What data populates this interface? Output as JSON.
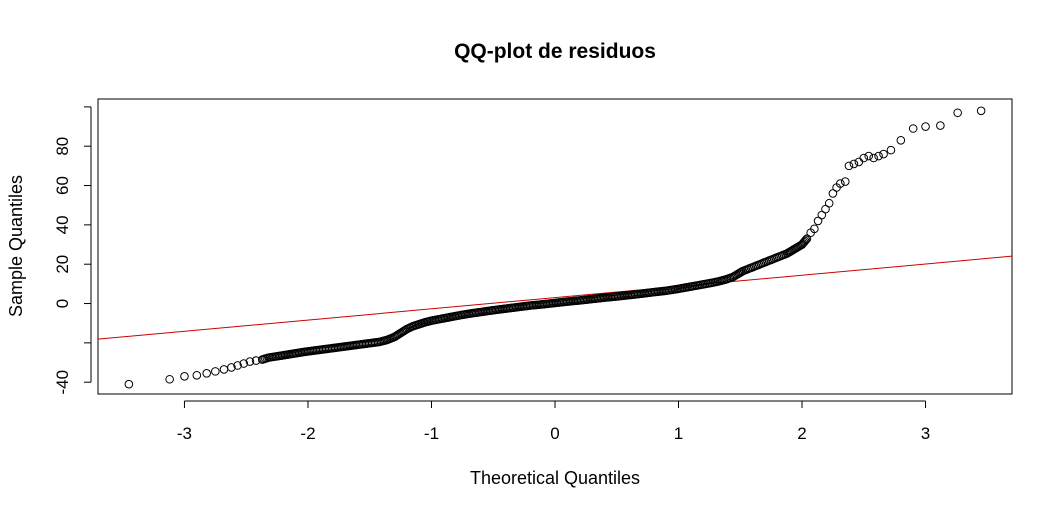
{
  "chart_data": {
    "type": "scatter",
    "title": "QQ-plot de residuos",
    "xlabel": "Theoretical Quantiles",
    "ylabel": "Sample Quantiles",
    "xlim": [
      -3.7,
      3.7
    ],
    "ylim": [
      -46,
      104
    ],
    "xticks": [
      -3,
      -2,
      -1,
      0,
      1,
      2,
      3
    ],
    "yticks": [
      -40,
      -20,
      0,
      20,
      40,
      60,
      80,
      100
    ],
    "ytick_labels": [
      "-40",
      "",
      "0",
      "20",
      "40",
      "60",
      "80",
      ""
    ],
    "grid": false,
    "legend": "none",
    "colors": {
      "points": "#000000",
      "reference_line": "#cc0000"
    },
    "reference_line": {
      "intercept": 3.0,
      "slope": 5.7
    },
    "series": [
      {
        "values_xy": [
          [
            -3.45,
            -41
          ],
          [
            -3.12,
            -38.5
          ],
          [
            -3.0,
            -37
          ],
          [
            -2.9,
            -36.5
          ],
          [
            -2.82,
            -35.5
          ],
          [
            -2.75,
            -34.5
          ],
          [
            -2.68,
            -33.5
          ],
          [
            -2.62,
            -32.5
          ],
          [
            -2.57,
            -31.5
          ],
          [
            -2.52,
            -30.5
          ],
          [
            -2.47,
            -29.5
          ],
          [
            -2.42,
            -29
          ],
          [
            -2.37,
            -28.5
          ],
          [
            -2.32,
            -27.5
          ],
          [
            -2.27,
            -27
          ],
          [
            -2.22,
            -26.5
          ],
          [
            -2.17,
            -26
          ],
          [
            -2.12,
            -25.5
          ],
          [
            -2.07,
            -25
          ],
          [
            -2.02,
            -24.5
          ],
          [
            -1.96,
            -24
          ],
          [
            -1.9,
            -23.5
          ],
          [
            -1.84,
            -23
          ],
          [
            -1.78,
            -22.5
          ],
          [
            -1.72,
            -22
          ],
          [
            -1.66,
            -21.5
          ],
          [
            -1.6,
            -21
          ],
          [
            -1.54,
            -20.5
          ],
          [
            -1.48,
            -20
          ],
          [
            -1.42,
            -19.5
          ],
          [
            -1.36,
            -18.5
          ],
          [
            -1.3,
            -17
          ],
          [
            -1.25,
            -15
          ],
          [
            -1.2,
            -13
          ],
          [
            -1.15,
            -11.5
          ],
          [
            -1.1,
            -10.5
          ],
          [
            -1.05,
            -9.5
          ],
          [
            -1.0,
            -8.7
          ],
          [
            -0.9,
            -7.5
          ],
          [
            -0.8,
            -6.3
          ],
          [
            -0.7,
            -5.2
          ],
          [
            -0.6,
            -4.3
          ],
          [
            -0.5,
            -3.4
          ],
          [
            -0.4,
            -2.6
          ],
          [
            -0.3,
            -1.8
          ],
          [
            -0.2,
            -1.0
          ],
          [
            -0.1,
            -0.4
          ],
          [
            0.0,
            0.3
          ],
          [
            0.1,
            1.0
          ],
          [
            0.2,
            1.6
          ],
          [
            0.3,
            2.3
          ],
          [
            0.4,
            3.0
          ],
          [
            0.5,
            3.6
          ],
          [
            0.6,
            4.3
          ],
          [
            0.7,
            5.0
          ],
          [
            0.8,
            5.8
          ],
          [
            0.9,
            6.5
          ],
          [
            1.0,
            7.5
          ],
          [
            1.08,
            8.4
          ],
          [
            1.16,
            9.3
          ],
          [
            1.24,
            10.2
          ],
          [
            1.32,
            11.2
          ],
          [
            1.38,
            12.2
          ],
          [
            1.44,
            13.5
          ],
          [
            1.48,
            15
          ],
          [
            1.52,
            16.5
          ],
          [
            1.56,
            17.5
          ],
          [
            1.6,
            18.5
          ],
          [
            1.64,
            19.5
          ],
          [
            1.68,
            20.5
          ],
          [
            1.72,
            21.5
          ],
          [
            1.76,
            22.5
          ],
          [
            1.8,
            23.5
          ],
          [
            1.84,
            24.5
          ],
          [
            1.88,
            25.5
          ],
          [
            1.92,
            27
          ],
          [
            1.96,
            28.5
          ],
          [
            2.0,
            30
          ],
          [
            2.04,
            33
          ],
          [
            2.07,
            36
          ],
          [
            2.1,
            38
          ],
          [
            2.13,
            42
          ],
          [
            2.16,
            45
          ],
          [
            2.19,
            48
          ],
          [
            2.22,
            51
          ],
          [
            2.25,
            56
          ],
          [
            2.28,
            59
          ],
          [
            2.31,
            61
          ],
          [
            2.35,
            62
          ],
          [
            2.38,
            70
          ],
          [
            2.42,
            71
          ],
          [
            2.46,
            72
          ],
          [
            2.5,
            74
          ],
          [
            2.54,
            75
          ],
          [
            2.58,
            74
          ],
          [
            2.62,
            75
          ],
          [
            2.66,
            76
          ],
          [
            2.72,
            78
          ],
          [
            2.8,
            83
          ],
          [
            2.9,
            89
          ],
          [
            3.0,
            90
          ],
          [
            3.12,
            90.5
          ],
          [
            3.26,
            97
          ],
          [
            3.45,
            98
          ]
        ]
      }
    ]
  }
}
